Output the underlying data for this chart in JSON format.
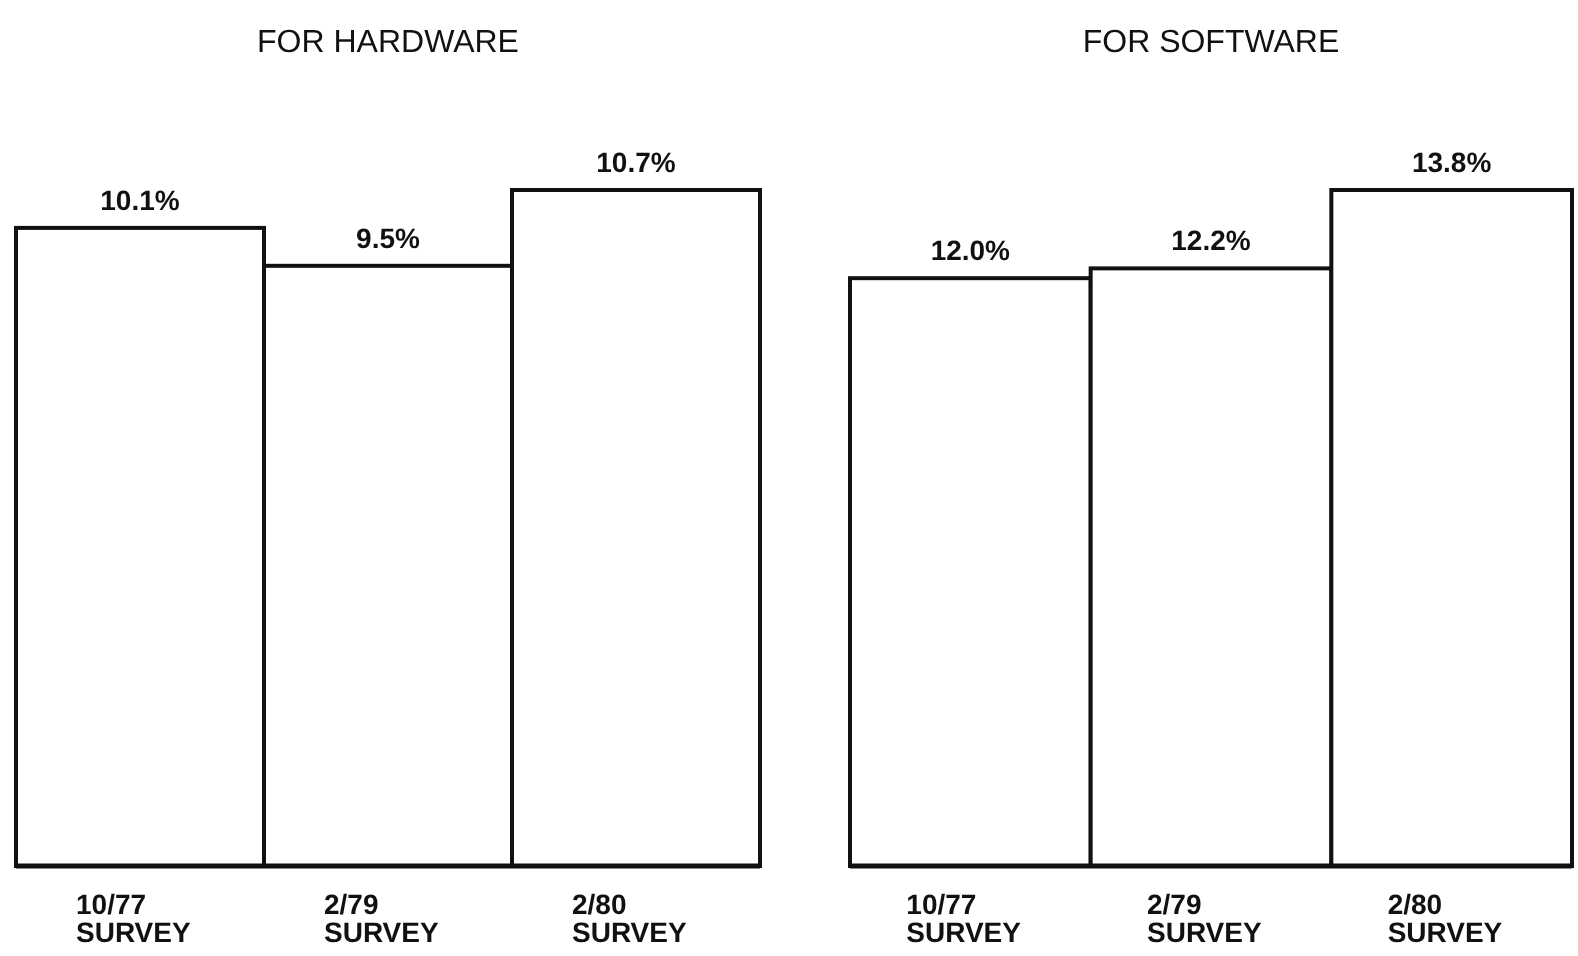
{
  "chart_data": [
    {
      "type": "bar",
      "title": "FOR HARDWARE",
      "categories": [
        "10/77\nSURVEY",
        "2/79\nSURVEY",
        "2/80\nSURVEY"
      ],
      "values": [
        10.1,
        9.5,
        10.7
      ],
      "value_labels": [
        "10.1%",
        "9.5%",
        "10.7%"
      ],
      "color": "#ffffff"
    },
    {
      "type": "bar",
      "title": "FOR SOFTWARE",
      "categories": [
        "10/77\nSURVEY",
        "2/79\nSURVEY",
        "2/80\nSURVEY"
      ],
      "values": [
        12.0,
        12.2,
        13.8
      ],
      "value_labels": [
        "12.0%",
        "12.2%",
        "13.8%"
      ],
      "color": "#ffffff"
    }
  ]
}
